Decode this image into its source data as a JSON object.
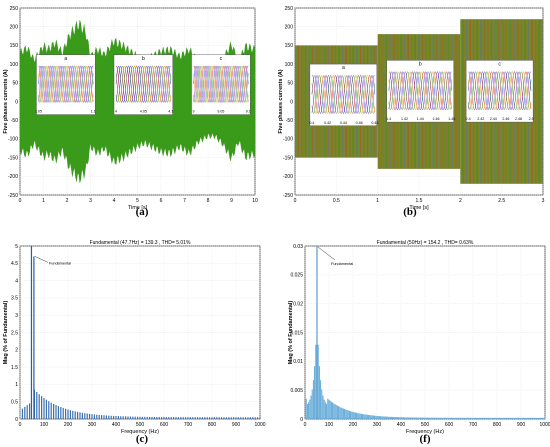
{
  "chart_data": [
    {
      "panel": "a",
      "type": "area",
      "title": "",
      "xlabel": "Time [s]",
      "ylabel": "Five phases currents (A)",
      "xlim": [
        0,
        10
      ],
      "ylim": [
        -250,
        250
      ],
      "xticks": [
        0,
        1,
        2,
        3,
        4,
        5,
        6,
        7,
        8,
        9,
        10
      ],
      "yticks": [
        -250,
        -200,
        -150,
        -100,
        -50,
        0,
        50,
        100,
        150,
        200,
        250
      ],
      "grid": true,
      "color": "#3a9a1a",
      "envelope_t": [
        0,
        0.3,
        0.6,
        1.0,
        1.2,
        1.5,
        1.8,
        2.1,
        2.5,
        2.8,
        3.0,
        3.3,
        3.6,
        4.0,
        4.4,
        4.7,
        5.0,
        5.3,
        5.6,
        6.0,
        6.4,
        6.8,
        7.2,
        7.6,
        8.0,
        8.3,
        8.6,
        9.0,
        9.3,
        9.6,
        10
      ],
      "envelope_max": [
        140,
        155,
        120,
        160,
        150,
        170,
        140,
        190,
        225,
        200,
        130,
        150,
        135,
        175,
        160,
        145,
        130,
        120,
        130,
        145,
        150,
        130,
        150,
        115,
        100,
        100,
        120,
        165,
        115,
        160,
        150
      ],
      "insets": [
        {
          "label": "a",
          "xticks": [
            "1.05",
            "1.1"
          ]
        },
        {
          "label": "b",
          "xticks": [
            "4",
            "4.05",
            "4.1"
          ]
        },
        {
          "label": "c",
          "xticks": [
            "9",
            "9.05",
            "9.1"
          ]
        }
      ]
    },
    {
      "panel": "b",
      "type": "area",
      "title": "",
      "xlabel": "Time [s]",
      "ylabel": "Five phases currents (A)",
      "xlim": [
        0,
        3
      ],
      "ylim": [
        -250,
        250
      ],
      "xticks": [
        0,
        0.5,
        1,
        1.5,
        2,
        2.5,
        3
      ],
      "yticks": [
        -250,
        -200,
        -150,
        -100,
        -50,
        0,
        50,
        100,
        150,
        200,
        250
      ],
      "grid": true,
      "segments": [
        {
          "t0": 0,
          "t1": 1,
          "amplitude": 150
        },
        {
          "t0": 1,
          "t1": 2,
          "amplitude": 180
        },
        {
          "t0": 2,
          "t1": 3,
          "amplitude": 220
        }
      ],
      "insets": [
        {
          "label": "a",
          "xticks": [
            "0.4",
            "0.42",
            "0.44",
            "0.46",
            "0.48"
          ]
        },
        {
          "label": "b",
          "xticks": [
            "1.4",
            "1.42",
            "1.44",
            "1.46",
            "1.48"
          ]
        },
        {
          "label": "c",
          "xticks": [
            "2.4",
            "2.42",
            "2.44",
            "2.46",
            "2.48",
            "2.5"
          ]
        }
      ]
    },
    {
      "panel": "c",
      "type": "bar",
      "title": "Fundamental (47.7Hz) = 139.3 , THD= 5.01%",
      "xlabel": "Frequency (Hz)",
      "ylabel": "Mag (% of Fundamental)",
      "xlim": [
        0,
        1000
      ],
      "ylim": [
        0,
        5
      ],
      "xticks": [
        0,
        100,
        200,
        300,
        400,
        500,
        600,
        700,
        800,
        900,
        1000
      ],
      "yticks": [
        0,
        0.5,
        1,
        1.5,
        2,
        2.5,
        3,
        3.5,
        4,
        4.5,
        5
      ],
      "grid": true,
      "annotation": "Fundamental",
      "fundamental_hz": 47.7,
      "peak_value": 5.0,
      "secondary_peak": {
        "x": 58,
        "value": 4.7
      },
      "decay": {
        "start": 0.8,
        "floor": 0.05
      }
    },
    {
      "panel": "f",
      "type": "bar",
      "title": "Fundamental (50Hz) = 154.2 , THD= 0.63%",
      "xlabel": "Frequency (Hz)",
      "ylabel": "Mag (% of Fundamental)",
      "xlim": [
        0,
        1000
      ],
      "ylim": [
        0,
        0.03
      ],
      "xticks": [
        0,
        100,
        200,
        300,
        400,
        500,
        600,
        700,
        800,
        900,
        1000
      ],
      "yticks": [
        0,
        0.005,
        0.01,
        0.015,
        0.02,
        0.025,
        0.03
      ],
      "grid": true,
      "annotation": "Fundamental",
      "fundamental_hz": 50,
      "peak_value": 0.03
    }
  ],
  "captions": {
    "a": "(a)",
    "b": "(b)",
    "c": "(c)",
    "f": "(f)"
  }
}
